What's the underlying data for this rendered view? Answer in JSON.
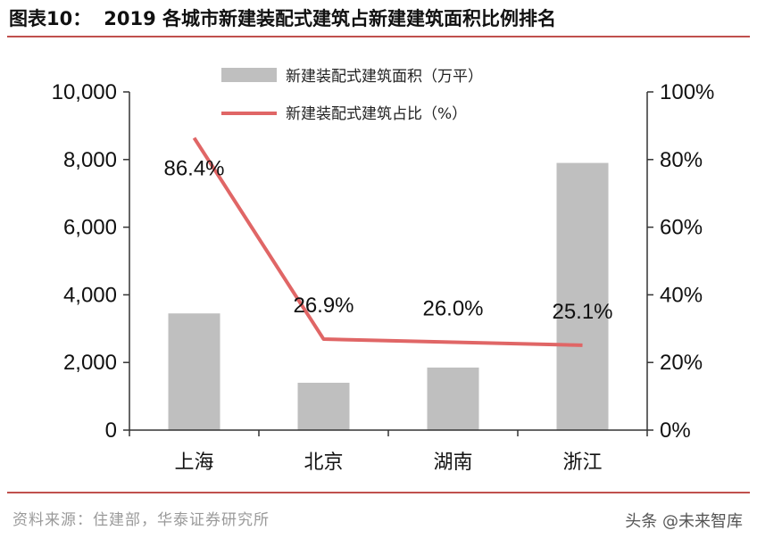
{
  "header": {
    "figure_label": "图表10：",
    "title": "2019 各城市新建装配式建筑占新建建筑面积比例排名"
  },
  "source": "资料来源：住建部，华泰证券研究所",
  "watermark": "头条 @未来智库",
  "colors": {
    "bar": "#bfbfbf",
    "line": "#e06666",
    "rule": "#c0504d",
    "axis": "#333333"
  },
  "chart_data": {
    "type": "bar",
    "categories": [
      "上海",
      "北京",
      "湖南",
      "浙江"
    ],
    "series": [
      {
        "name": "新建装配式建筑面积（万平）",
        "type": "bar",
        "axis": "left",
        "values": [
          3450,
          1400,
          1850,
          7900
        ]
      },
      {
        "name": "新建装配式建筑占比（%）",
        "type": "line",
        "axis": "right",
        "values": [
          86.4,
          26.9,
          26.0,
          25.1
        ],
        "labels": [
          "86.4%",
          "26.9%",
          "26.0%",
          "25.1%"
        ]
      }
    ],
    "y_left": {
      "min": 0,
      "max": 10000,
      "ticks": [
        "0",
        "2,000",
        "4,000",
        "6,000",
        "8,000",
        "10,000"
      ]
    },
    "y_right": {
      "min": 0,
      "max": 100,
      "ticks": [
        "0%",
        "20%",
        "40%",
        "60%",
        "80%",
        "100%"
      ]
    },
    "legend_position": "top-center",
    "grid": false
  }
}
